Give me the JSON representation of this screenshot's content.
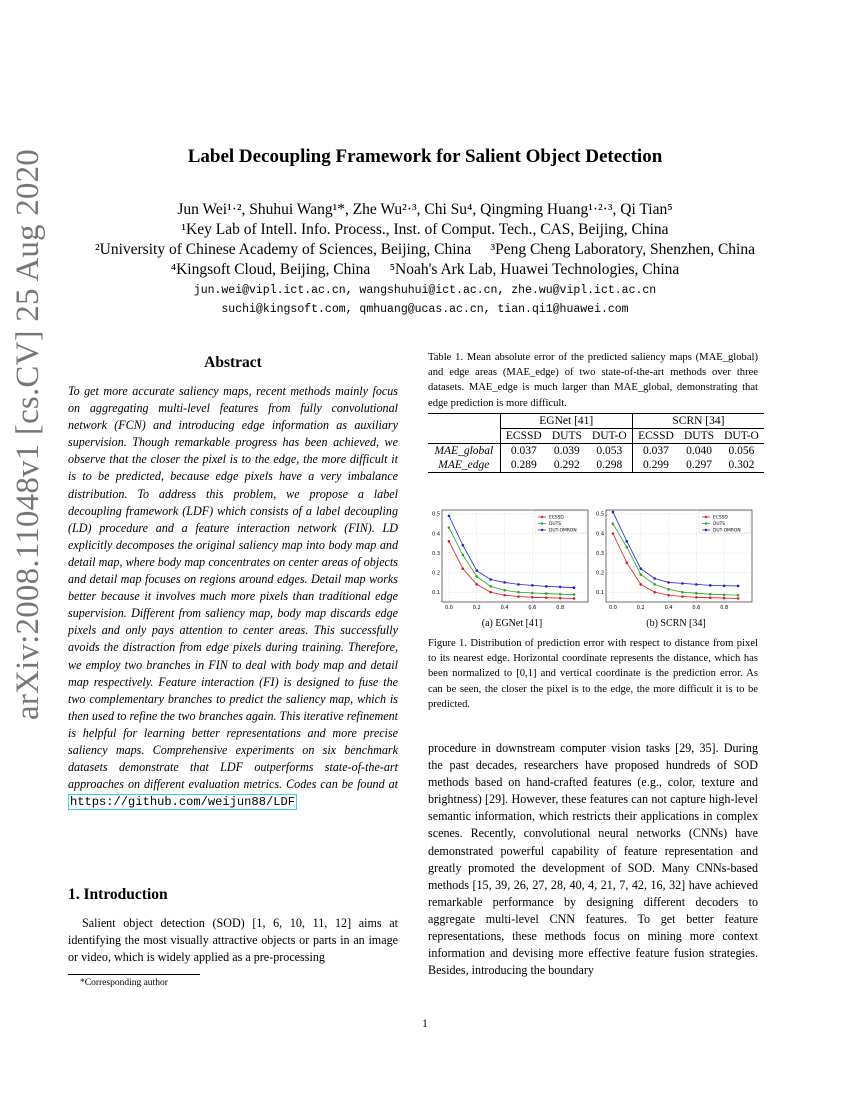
{
  "sidebar": "arXiv:2008.11048v1  [cs.CV]  25 Aug 2020",
  "title": "Label Decoupling Framework for Salient Object Detection",
  "authors_line": "Jun Wei¹·², Shuhui Wang¹*, Zhe Wu²·³, Chi Su⁴, Qingming Huang¹·²·³, Qi Tian⁵",
  "affil_1": "¹Key Lab of Intell. Info. Process., Inst. of Comput. Tech., CAS, Beijing, China",
  "affil_2": "²University of Chinese Academy of Sciences, Beijing, China     ³Peng Cheng Laboratory, Shenzhen, China",
  "affil_3": "⁴Kingsoft Cloud, Beijing, China     ⁵Noah's Ark Lab, Huawei Technologies, China",
  "email_1": "jun.wei@vipl.ict.ac.cn, wangshuhui@ict.ac.cn, zhe.wu@vipl.ict.ac.cn",
  "email_2": "suchi@kingsoft.com, qmhuang@ucas.ac.cn, tian.qi1@huawei.com",
  "abstract_heading": "Abstract",
  "abstract_text": "To get more accurate saliency maps, recent methods mainly focus on aggregating multi-level features from fully convolutional network (FCN) and introducing edge information as auxiliary supervision. Though remarkable progress has been achieved, we observe that the closer the pixel is to the edge, the more difficult it is to be predicted, because edge pixels have a very imbalance distribution. To address this problem, we propose a label decoupling framework (LDF) which consists of a label decoupling (LD) procedure and a feature interaction network (FIN). LD explicitly decomposes the original saliency map into body map and detail map, where body map concentrates on center areas of objects and detail map focuses on regions around edges. Detail map works better because it involves much more pixels than traditional edge supervision. Different from saliency map, body map discards edge pixels and only pays attention to center areas. This successfully avoids the distraction from edge pixels during training. Therefore, we employ two branches in FIN to deal with body map and detail map respectively. Feature interaction (FI) is designed to fuse the two complementary branches to predict the saliency map, which is then used to refine the two branches again. This iterative refinement is helpful for learning better representations and more precise saliency maps. Comprehensive experiments on six benchmark datasets demonstrate that LDF outperforms state-of-the-art approaches on different evaluation metrics. Codes can be found at",
  "abstract_url": "https://github.com/weijun88/LDF",
  "intro_heading": "1. Introduction",
  "intro_text": "Salient object detection (SOD) [1, 6, 10, 11, 12] aims at identifying the most visually attractive objects or parts in an image or video, which is widely applied as a pre-processing",
  "footnote": "*Corresponding author",
  "table_caption": "Table 1. Mean absolute error of the predicted saliency maps (MAE_global) and edge areas (MAE_edge) of two state-of-the-art methods over three datasets. MAE_edge is much larger than MAE_global, demonstrating that edge prediction is more difficult.",
  "table": {
    "group_1": "EGNet [41]",
    "group_2": "SCRN [34]",
    "cols": [
      "ECSSD",
      "DUTS",
      "DUT-O",
      "ECSSD",
      "DUTS",
      "DUT-O"
    ],
    "row_1_label": "MAE_global",
    "row_1": [
      "0.037",
      "0.039",
      "0.053",
      "0.037",
      "0.040",
      "0.056"
    ],
    "row_2_label": "MAE_edge",
    "row_2": [
      "0.289",
      "0.292",
      "0.298",
      "0.299",
      "0.297",
      "0.302"
    ]
  },
  "fig_sub_a": "(a)  EGNet [41]",
  "fig_sub_b": "(b)  SCRN [34]",
  "fig_caption": "Figure 1. Distribution of prediction error with respect to distance from pixel to its nearest edge. Horizontal coordinate represents the distance, which has been normalized to [0,1] and vertical coordinate is the prediction error. As can be seen, the closer the pixel is to the edge, the more difficult it is to be predicted.",
  "right_body": "procedure in downstream computer vision tasks [29, 35]. During the past decades, researchers have proposed hundreds of SOD methods based on hand-crafted features (e.g., color, texture and brightness) [29]. However, these features can not capture high-level semantic information, which restricts their applications in complex scenes. Recently, convolutional neural networks (CNNs) have demonstrated powerful capability of feature representation and greatly promoted the development of SOD. Many CNNs-based methods [15, 39, 26, 27, 28, 40, 4, 21, 7, 42, 16, 32] have achieved remarkable performance by designing different decoders to aggregate multi-level CNN features. To get better feature representations, these methods focus on mining more context information and devising more effective feature fusion strategies. Besides, introducing the boundary",
  "page_number": "1",
  "chart_data": [
    {
      "type": "line",
      "x": [
        0.0,
        0.1,
        0.2,
        0.3,
        0.4,
        0.5,
        0.6,
        0.7,
        0.8,
        0.9
      ],
      "xlim": [
        -0.05,
        1.0
      ],
      "ylim": [
        0.05,
        0.52
      ],
      "yticks": [
        0.1,
        0.2,
        0.3,
        0.4,
        0.5
      ],
      "xticks": [
        0.0,
        0.2,
        0.4,
        0.6,
        0.8
      ],
      "grid": true,
      "legend": "top-right",
      "series": [
        {
          "name": "ECSSD",
          "color": "#e41a1c",
          "values": [
            0.36,
            0.22,
            0.14,
            0.1,
            0.085,
            0.078,
            0.074,
            0.072,
            0.07,
            0.068
          ]
        },
        {
          "name": "DUTS",
          "color": "#2ca02c",
          "values": [
            0.43,
            0.29,
            0.18,
            0.13,
            0.11,
            0.1,
            0.096,
            0.093,
            0.09,
            0.088
          ]
        },
        {
          "name": "DUT-OMRON",
          "color": "#1f1fdd",
          "values": [
            0.49,
            0.34,
            0.21,
            0.165,
            0.15,
            0.14,
            0.135,
            0.13,
            0.127,
            0.123
          ]
        }
      ]
    },
    {
      "type": "line",
      "x": [
        0.0,
        0.1,
        0.2,
        0.3,
        0.4,
        0.5,
        0.6,
        0.7,
        0.8,
        0.9
      ],
      "xlim": [
        -0.05,
        1.0
      ],
      "ylim": [
        0.05,
        0.52
      ],
      "yticks": [
        0.1,
        0.2,
        0.3,
        0.4,
        0.5
      ],
      "xticks": [
        0.0,
        0.2,
        0.4,
        0.6,
        0.8
      ],
      "grid": true,
      "legend": "top-right",
      "series": [
        {
          "name": "ECSSD",
          "color": "#e41a1c",
          "values": [
            0.4,
            0.25,
            0.14,
            0.1,
            0.085,
            0.078,
            0.074,
            0.072,
            0.07,
            0.068
          ]
        },
        {
          "name": "DUTS",
          "color": "#2ca02c",
          "values": [
            0.45,
            0.33,
            0.19,
            0.14,
            0.115,
            0.1,
            0.095,
            0.09,
            0.087,
            0.085
          ]
        },
        {
          "name": "DUT-OMRON",
          "color": "#1f1fdd",
          "values": [
            0.51,
            0.36,
            0.22,
            0.17,
            0.15,
            0.145,
            0.14,
            0.135,
            0.133,
            0.132
          ]
        }
      ]
    }
  ]
}
